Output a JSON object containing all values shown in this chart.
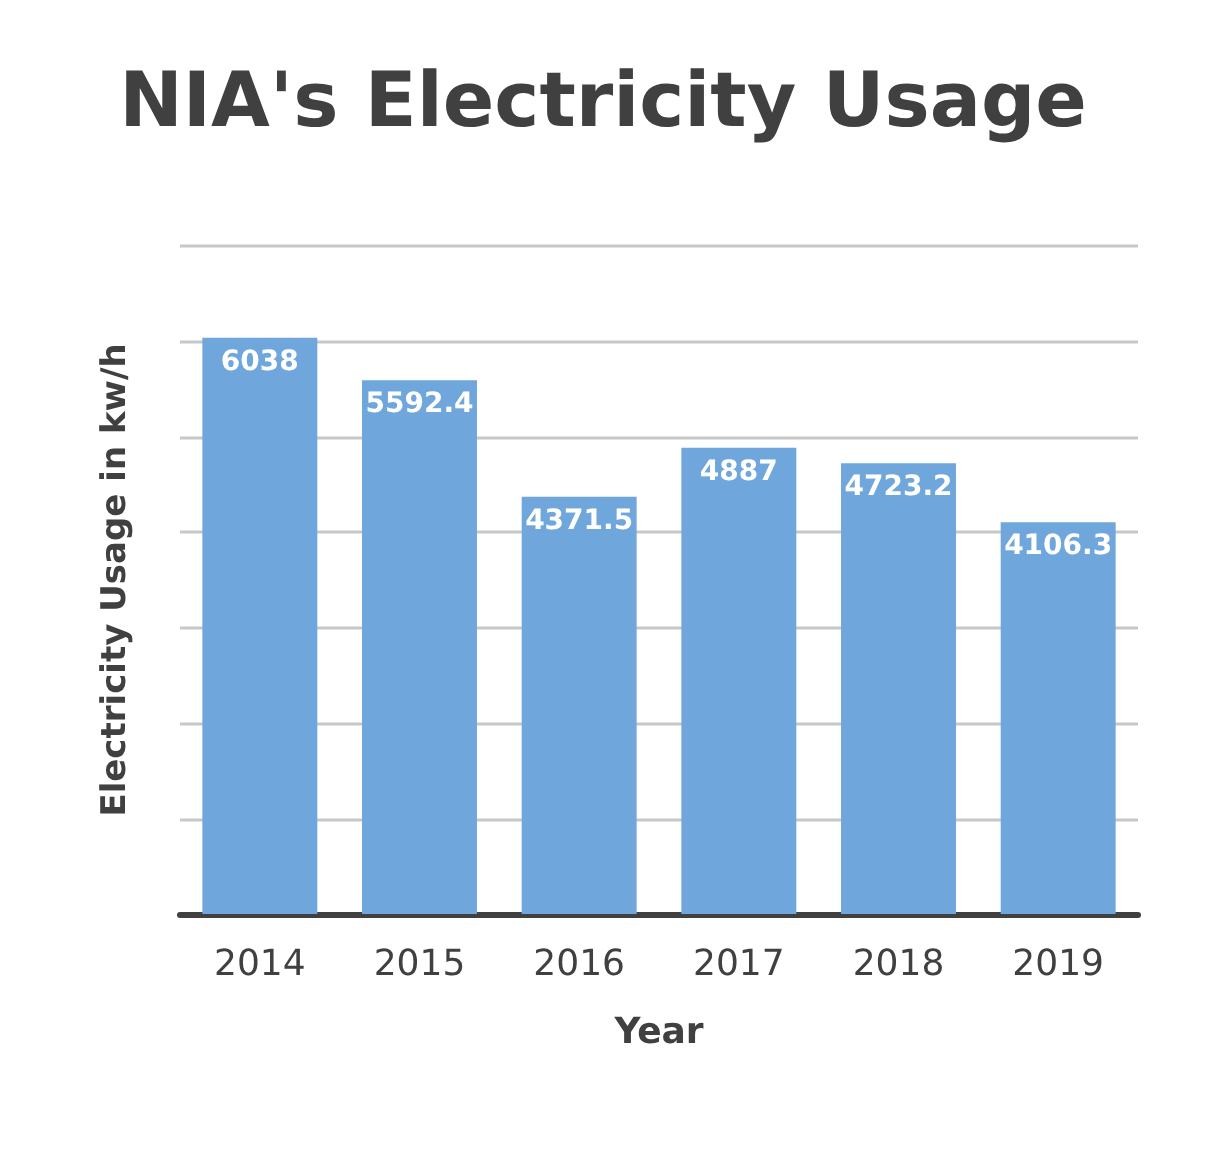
{
  "chart_data": {
    "type": "bar",
    "title": "NIA's Electricity Usage",
    "xlabel": "Year",
    "ylabel": "Electricity Usage in kw/h",
    "categories": [
      "2014",
      "2015",
      "2016",
      "2017",
      "2018",
      "2019"
    ],
    "values": [
      6038,
      5592.4,
      4371.5,
      4887,
      4723.2,
      4106.3
    ],
    "color": "#6fa6db",
    "data_labels": true,
    "grid": "y",
    "tick_labels": "x",
    "ylim": [
      0,
      7000
    ],
    "yticks": [
      {
        "value": 0,
        "label": null
      },
      {
        "value": 1000,
        "label": null
      },
      {
        "value": 2000,
        "label": null
      },
      {
        "value": 3000,
        "label": null
      },
      {
        "value": 4000,
        "label": null
      },
      {
        "value": 5000,
        "label": null
      },
      {
        "value": 6000,
        "label": null
      },
      {
        "value": 7000,
        "label": null
      }
    ]
  }
}
